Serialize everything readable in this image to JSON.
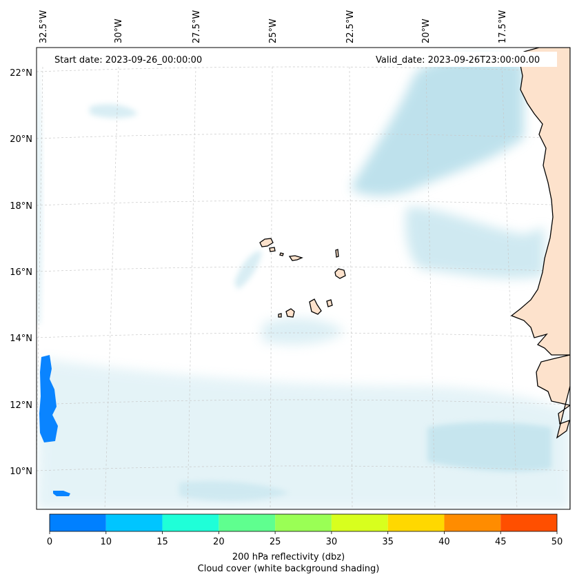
{
  "map": {
    "start_date_label": "Start date: 2023-09-26_00:00:00",
    "valid_date_label": "Valid_date: 2023-09-26T23:00:00.00",
    "lon_labels": [
      "32.5°W",
      "30°W",
      "27.5°W",
      "25°W",
      "22.5°W",
      "20°W",
      "17.5°W"
    ],
    "lat_labels": [
      "22°N",
      "20°N",
      "18°N",
      "16°N",
      "14°N",
      "12°N",
      "10°N"
    ],
    "gridlines": true,
    "land_color": "#fde2cc",
    "cloud_color": "#a9d8e6",
    "echo_color": "#0a84ff"
  },
  "colorbar": {
    "ticks": [
      "0",
      "10",
      "15",
      "20",
      "25",
      "30",
      "35",
      "40",
      "45",
      "50"
    ],
    "colors": [
      "#0080ff",
      "#00c5ff",
      "#1fffd8",
      "#5fff8f",
      "#9aff55",
      "#d8ff1e",
      "#ffd800",
      "#ff8c00",
      "#ff4f00"
    ],
    "label_line1": "200 hPa reflectivity (dbz)",
    "label_line2": "Cloud cover (white background shading)"
  }
}
